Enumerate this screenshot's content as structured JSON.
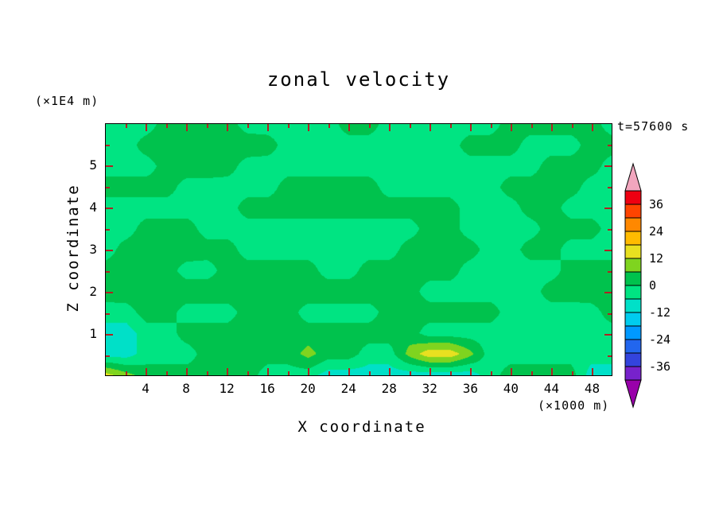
{
  "figure": {
    "title": "zonal velocity",
    "time_label": "t=57600 s",
    "y_unit_label": "(×1E4 m)",
    "x_unit_label": "(×1000 m)",
    "x_axis_label": "X coordinate",
    "y_axis_label": "Z coordinate"
  },
  "chart_data": {
    "type": "heatmap",
    "title": "zonal velocity",
    "subtitle": "t=57600 s",
    "xlabel": "X coordinate (×1000 m)",
    "ylabel": "Z coordinate (×1E4 m)",
    "x_range": [
      0,
      50
    ],
    "z_range": [
      0,
      6
    ],
    "x_ticks": [
      4,
      8,
      12,
      16,
      20,
      24,
      28,
      32,
      36,
      40,
      44,
      48
    ],
    "x_minor_step": 2,
    "y_ticks": [
      1,
      2,
      3,
      4,
      5
    ],
    "y_minor_step": 0.5,
    "grid_on": false,
    "colorbar": {
      "position": "right",
      "tick_labels": [
        36,
        24,
        12,
        0,
        -12,
        -24,
        -36
      ],
      "contour_interval": 6,
      "levels": [
        -42,
        -36,
        -30,
        -24,
        -18,
        -12,
        -6,
        0,
        6,
        12,
        18,
        24,
        30,
        36,
        42
      ],
      "colors": [
        "#9900AA",
        "#7722CC",
        "#3344DD",
        "#2266EE",
        "#0099FF",
        "#00CCEE",
        "#00E0C8",
        "#00E482",
        "#00C24D",
        "#7FD41F",
        "#E8E020",
        "#FFBB00",
        "#FF8800",
        "#FF4400",
        "#EE0011",
        "#F2A6BE"
      ]
    },
    "grid_note": "zonal velocity values on 26x13 nodes; rows listed top (z=6) to bottom (z=0); columns x=0..50 step 2",
    "grid": [
      [
        -3,
        -3,
        -3,
        3,
        3,
        3,
        3,
        -3,
        -3,
        -3,
        -3,
        -3,
        3,
        3,
        -3,
        -3,
        -3,
        -3,
        -3,
        -3,
        3,
        3,
        3,
        3,
        3,
        -3
      ],
      [
        -3,
        -3,
        3,
        4,
        4,
        4,
        4,
        4,
        3,
        -3,
        -3,
        -3,
        -3,
        -3,
        -3,
        -3,
        -3,
        -3,
        3,
        3,
        3,
        -3,
        -3,
        -3,
        3,
        3
      ],
      [
        -3,
        -3,
        -3,
        3,
        4,
        4,
        3,
        -3,
        -3,
        -3,
        -3,
        -3,
        -3,
        -3,
        -3,
        -3,
        -3,
        -3,
        -3,
        -3,
        -3,
        -3,
        3,
        3,
        3,
        -3
      ],
      [
        3,
        3,
        3,
        3,
        -3,
        -3,
        -3,
        -3,
        -3,
        3,
        3,
        3,
        3,
        3,
        -3,
        -3,
        -3,
        -3,
        -3,
        -3,
        3,
        3,
        3,
        3,
        -3,
        -3
      ],
      [
        -3,
        -3,
        -3,
        -3,
        -3,
        -3,
        -3,
        3,
        3,
        3,
        3,
        3,
        3,
        3,
        3,
        3,
        3,
        3,
        -3,
        -3,
        -3,
        3,
        3,
        -3,
        -3,
        -3
      ],
      [
        -3,
        -3,
        3,
        3,
        3,
        -3,
        -3,
        -3,
        -3,
        -3,
        -3,
        -3,
        -3,
        -3,
        -3,
        -3,
        3,
        3,
        -3,
        -3,
        -3,
        -3,
        3,
        3,
        3,
        -3
      ],
      [
        -3,
        3,
        4,
        4,
        4,
        3,
        3,
        -3,
        -3,
        -3,
        -3,
        -3,
        -3,
        -3,
        -3,
        3,
        3,
        3,
        3,
        -3,
        -3,
        3,
        3,
        -3,
        -3,
        -3
      ],
      [
        3,
        3,
        3,
        3,
        -3,
        -3,
        3,
        3,
        3,
        3,
        3,
        -3,
        -3,
        3,
        3,
        3,
        3,
        3,
        -3,
        -3,
        -3,
        -3,
        -3,
        3,
        3,
        3
      ],
      [
        3,
        4,
        4,
        4,
        4,
        4,
        4,
        4,
        4,
        4,
        4,
        4,
        4,
        4,
        4,
        3,
        -3,
        -3,
        -3,
        -3,
        -3,
        -3,
        3,
        3,
        4,
        4
      ],
      [
        -3,
        -3,
        3,
        3,
        -3,
        -3,
        -3,
        3,
        3,
        3,
        -3,
        -3,
        -3,
        -3,
        3,
        3,
        3,
        3,
        3,
        3,
        -3,
        -3,
        -3,
        -3,
        -3,
        3
      ],
      [
        -9,
        -9,
        -3,
        -3,
        3,
        3,
        3,
        3,
        3,
        3,
        3,
        3,
        3,
        3,
        3,
        3,
        -3,
        -3,
        -3,
        -3,
        -3,
        -3,
        -3,
        -3,
        -3,
        -3
      ],
      [
        -9,
        -9,
        -3,
        -3,
        -3,
        3,
        3,
        3,
        3,
        3,
        8,
        3,
        3,
        -3,
        -3,
        8,
        16,
        16,
        8,
        -3,
        -3,
        -3,
        -3,
        -3,
        -3,
        -3
      ],
      [
        14,
        8,
        3,
        3,
        3,
        3,
        3,
        3,
        -3,
        -3,
        -3,
        -9,
        -9,
        -9,
        -9,
        -9,
        -9,
        -9,
        -9,
        -3,
        3,
        3,
        3,
        3,
        -9,
        -9
      ]
    ]
  }
}
